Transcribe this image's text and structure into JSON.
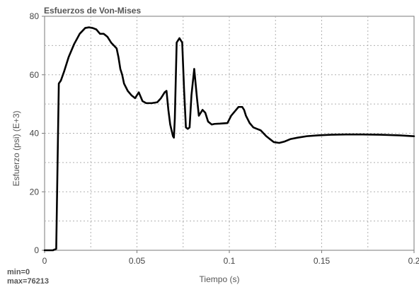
{
  "chart_data": {
    "type": "line",
    "title": "Esfuerzos de Von-Mises",
    "xlabel": "Tiempo (s)",
    "ylabel": "Esfuerzo (psi) (E+3)",
    "xlim": [
      0,
      0.2
    ],
    "ylim": [
      0,
      80
    ],
    "x_ticks": [
      0,
      0.05,
      0.1,
      0.15,
      0.2
    ],
    "x_tick_labels": [
      "0",
      "0.05",
      "0.1",
      "0.15",
      "0.2"
    ],
    "y_ticks": [
      0,
      20,
      40,
      60,
      80
    ],
    "y_tick_labels": [
      "0",
      "20",
      "40",
      "60",
      "80"
    ],
    "grid": true,
    "series": [
      {
        "color": "#000000",
        "x": [
          0,
          0.0045,
          0.0063,
          0.0077,
          0.0088,
          0.0105,
          0.013,
          0.016,
          0.019,
          0.022,
          0.024,
          0.026,
          0.028,
          0.03,
          0.032,
          0.034,
          0.036,
          0.039,
          0.04,
          0.041,
          0.042,
          0.043,
          0.045,
          0.047,
          0.049,
          0.051,
          0.053,
          0.055,
          0.058,
          0.061,
          0.063,
          0.065,
          0.066,
          0.067,
          0.068,
          0.0695,
          0.07,
          0.0705,
          0.0715,
          0.073,
          0.0745,
          0.0755,
          0.0765,
          0.0775,
          0.0785,
          0.0795,
          0.081,
          0.0825,
          0.0835,
          0.0845,
          0.0855,
          0.087,
          0.0885,
          0.0905,
          0.092,
          0.095,
          0.099,
          0.101,
          0.103,
          0.105,
          0.107,
          0.108,
          0.109,
          0.111,
          0.113,
          0.115,
          0.117,
          0.12,
          0.124,
          0.127,
          0.13,
          0.133,
          0.137,
          0.142,
          0.148,
          0.155,
          0.163,
          0.172,
          0.182,
          0.192,
          0.2
        ],
        "y": [
          0,
          0,
          0.5,
          57,
          58,
          61,
          66,
          70.5,
          74,
          76,
          76.2,
          76,
          75.5,
          74,
          74,
          73,
          71,
          69,
          66,
          62,
          60,
          57,
          54.5,
          53,
          52,
          54,
          51,
          50.3,
          50.3,
          50.6,
          52,
          54,
          54.5,
          48,
          43,
          39,
          38.5,
          45,
          71,
          72.5,
          71,
          55,
          42,
          41.5,
          42,
          53,
          62,
          52,
          46,
          47,
          48,
          47,
          44,
          43,
          43.2,
          43.3,
          43.5,
          46,
          47.5,
          49,
          49,
          48,
          46,
          43.5,
          42,
          41.5,
          41,
          39,
          37,
          36.7,
          37.2,
          38,
          38.5,
          39,
          39.3,
          39.5,
          39.6,
          39.6,
          39.5,
          39.3,
          39
        ]
      }
    ]
  },
  "stats": {
    "min_label": "min=0",
    "max_label": "max=76213"
  }
}
